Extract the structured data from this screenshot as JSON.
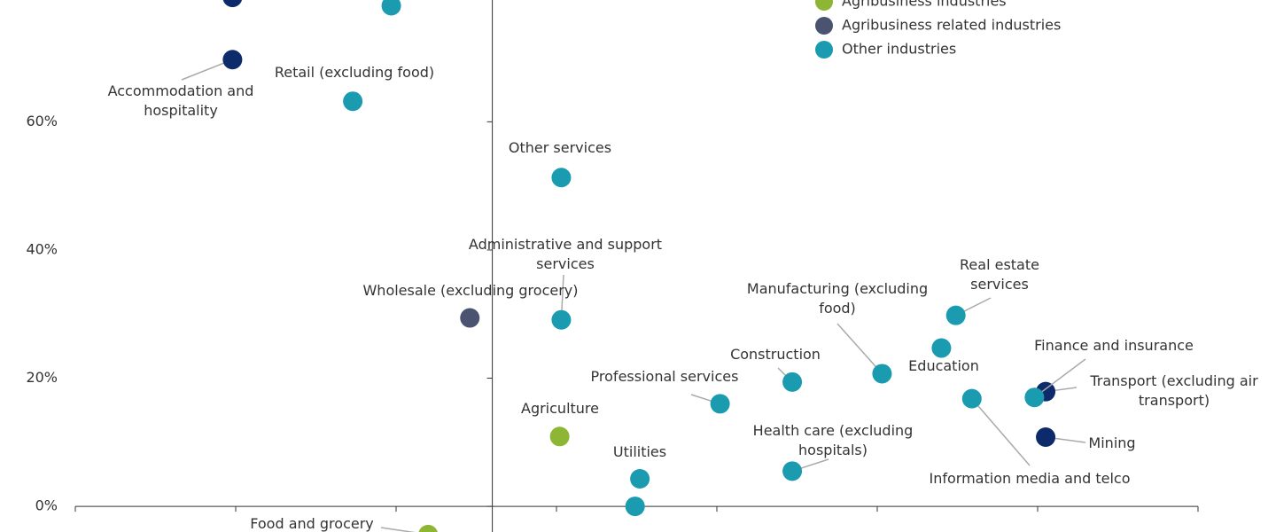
{
  "chart_data": {
    "type": "scatter",
    "xlim": [
      -26,
      44
    ],
    "xticks": [
      -26,
      -16,
      -6,
      4,
      14,
      24,
      34,
      44
    ],
    "ylim": [
      -4,
      79
    ],
    "yticks": [
      {
        "value": 0,
        "label": "0%"
      },
      {
        "value": 20,
        "label": "20%"
      },
      {
        "value": 40,
        "label": "40%"
      },
      {
        "value": 60,
        "label": "60%"
      }
    ],
    "series": [
      {
        "name": null,
        "color": "#0d2a6b",
        "x": [
          -16.2,
          -16.2,
          34.5,
          34.5
        ],
        "values": [
          79.4,
          69.7,
          17.9,
          10.8
        ],
        "labels": [
          null,
          "Accommodation and hospitality",
          "Transport (excluding air transport)",
          "Mining"
        ]
      },
      {
        "name": "Agribusiness industries",
        "color": "#8db634",
        "x": [
          4.2,
          -4.0
        ],
        "values": [
          10.9,
          -4.4
        ],
        "labels": [
          "Agriculture",
          "Food and grocery"
        ]
      },
      {
        "name": "Agribusiness related industries",
        "color": "#4a5470",
        "x": [
          -1.4
        ],
        "values": [
          29.4
        ],
        "labels": [
          "Wholesale (excluding grocery)"
        ]
      },
      {
        "name": "Other industries",
        "color": "#1a9bb0",
        "x": [
          -6.3,
          -8.7,
          4.3,
          4.3,
          9.2,
          8.9,
          14.2,
          18.7,
          24.3,
          18.7,
          28.0,
          28.9,
          29.9,
          33.8
        ],
        "values": [
          78.1,
          63.2,
          51.3,
          29.1,
          4.3,
          0,
          16.0,
          19.4,
          20.7,
          5.5,
          24.7,
          29.8,
          16.8,
          17.0
        ],
        "labels": [
          null,
          "Retail (excluding food)",
          "Other services",
          "Administrative and support services",
          "Utilities",
          null,
          "Professional services",
          "Construction",
          "Manufacturing (excluding food)",
          "Health care (excluding hospitals)",
          "Education",
          "Real estate services",
          "Information media and telco",
          "Finance and insurance"
        ]
      }
    ]
  }
}
